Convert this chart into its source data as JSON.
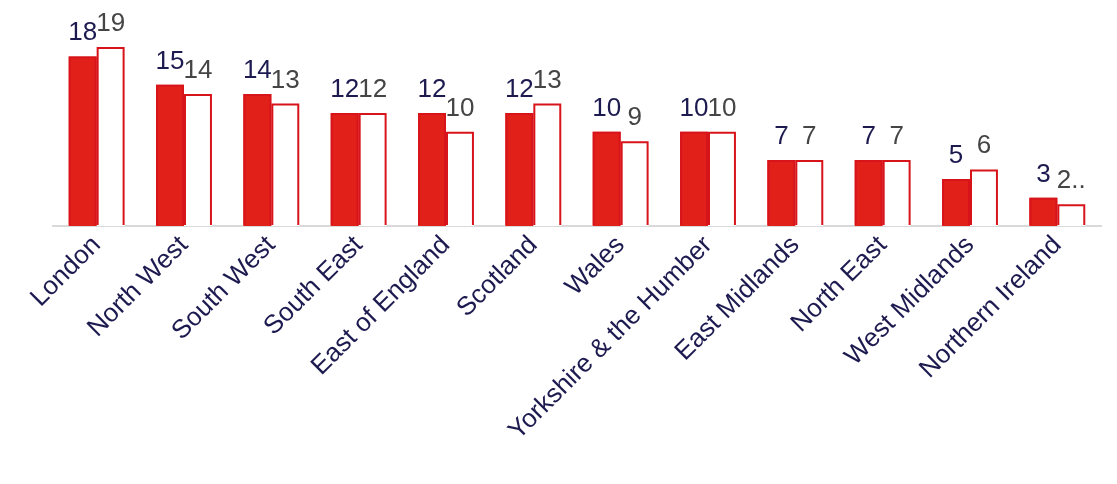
{
  "chart_data": {
    "type": "bar",
    "categories": [
      "London",
      "North West",
      "South West",
      "South East",
      "East of England",
      "Scotland",
      "Wales",
      "Yorkshire & the Humber",
      "East Midlands",
      "North East",
      "West Midlands",
      "Northern Ireland"
    ],
    "series": [
      {
        "color": "#e2201a",
        "values": [
          18,
          15,
          14,
          12,
          12,
          12,
          10,
          10,
          7,
          7,
          5,
          3
        ],
        "value_labels": [
          "18",
          "15",
          "14",
          "12",
          "12",
          "12",
          "10",
          "10",
          "7",
          "7",
          "5",
          "3"
        ]
      },
      {
        "color": "#ffffff",
        "values": [
          19,
          14,
          13,
          12,
          10,
          13,
          9,
          10,
          7,
          7,
          6,
          2.3
        ],
        "value_labels": [
          "19",
          "14",
          "13",
          "12",
          "10",
          "13",
          "9",
          "10",
          "7",
          "7",
          "6",
          "2.."
        ]
      }
    ]
  }
}
